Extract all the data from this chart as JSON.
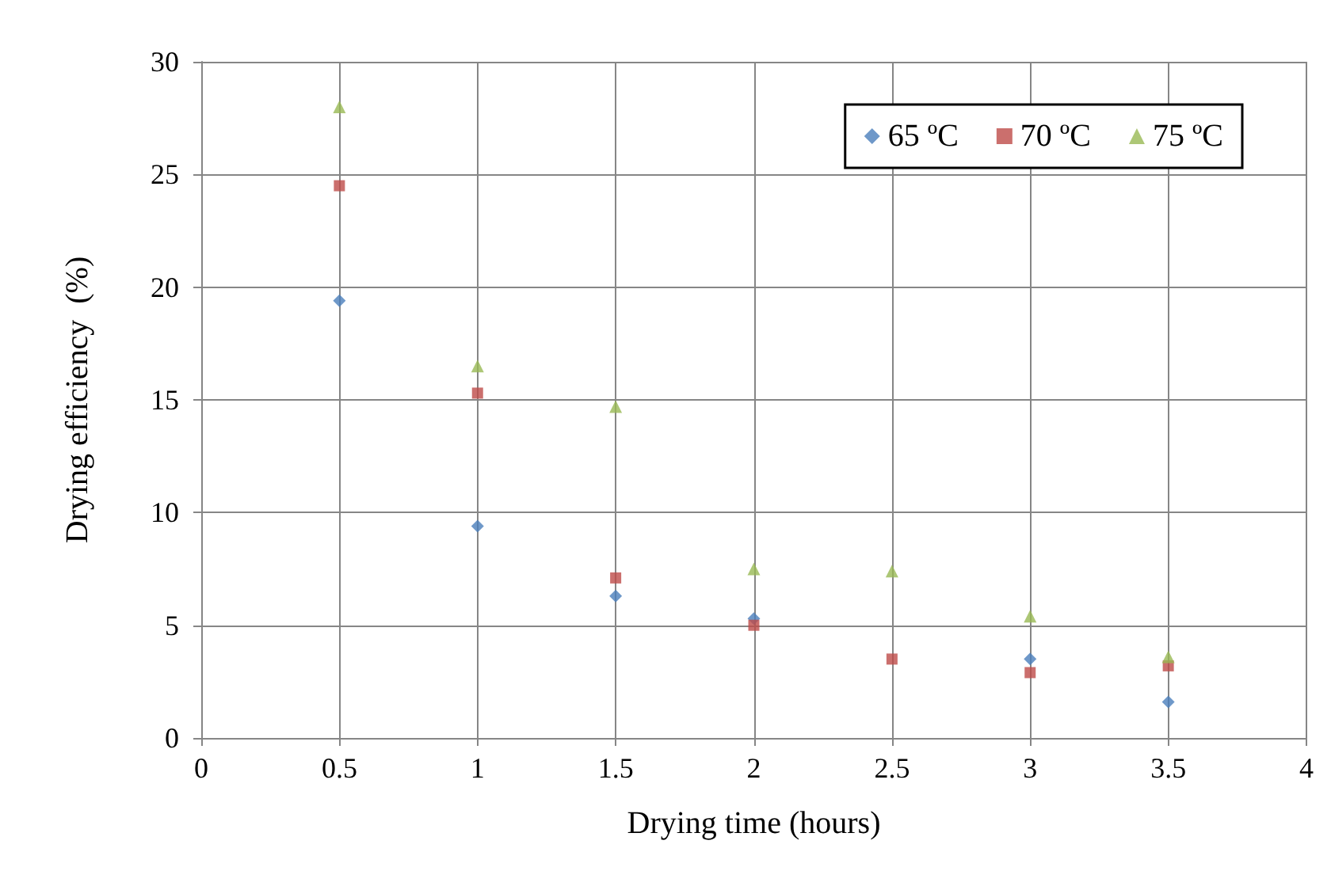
{
  "chart_data": {
    "type": "scatter",
    "xlabel": "Drying time (hours)",
    "ylabel": "Drying efficiency  (%)",
    "x": [
      0.5,
      1,
      1.5,
      2,
      2.5,
      3,
      3.5
    ],
    "series": [
      {
        "name": "65 ºC",
        "color": "#4a7ebb",
        "marker": "diamond",
        "values": [
          19.4,
          9.4,
          6.3,
          5.3,
          null,
          3.5,
          1.6
        ]
      },
      {
        "name": "70 ºC",
        "color": "#be4b48",
        "marker": "square",
        "values": [
          24.5,
          15.3,
          7.1,
          5.0,
          3.5,
          2.9,
          3.2
        ]
      },
      {
        "name": "75 ºC",
        "color": "#98b954",
        "marker": "triangle",
        "values": [
          28.0,
          16.5,
          14.7,
          7.5,
          7.4,
          5.4,
          3.6
        ]
      }
    ],
    "xlim": [
      0,
      4
    ],
    "xticks": [
      0,
      0.5,
      1,
      1.5,
      2,
      2.5,
      3,
      3.5,
      4
    ],
    "ylim": [
      0,
      30
    ],
    "yticks": [
      0,
      5,
      10,
      15,
      20,
      25,
      30
    ],
    "grid": true,
    "legend": "top right"
  }
}
